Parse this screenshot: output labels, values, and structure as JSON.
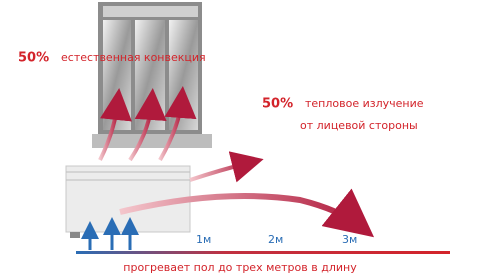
{
  "convection": {
    "percent": "50%",
    "label": "естественная конвекция"
  },
  "radiation": {
    "percent": "50%",
    "lines": [
      "тепловое излучение",
      "от лицевой стороны"
    ]
  },
  "distances": [
    "1м",
    "2м",
    "3м"
  ],
  "caption": "прогревает пол до трех метров в длину"
}
